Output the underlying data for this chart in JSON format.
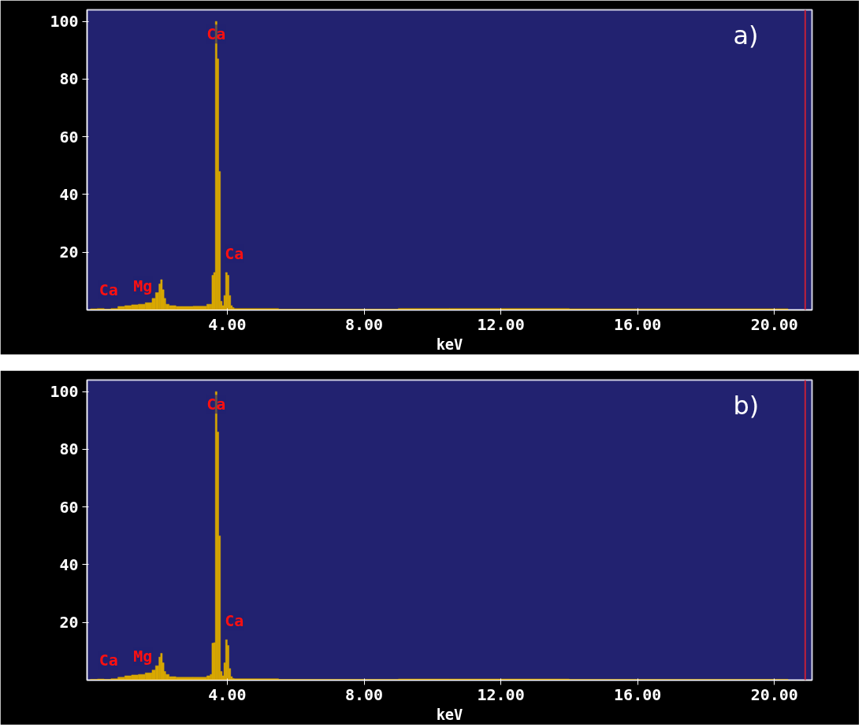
{
  "chart_data": [
    {
      "type": "histogram",
      "title": "a)",
      "xlabel": "keV",
      "bins": [
        0,
        0.2,
        0.4,
        0.6,
        0.8,
        1.0,
        1.2,
        1.4,
        1.6,
        1.8,
        1.9,
        2.0,
        2.05,
        2.1,
        2.15,
        2.2,
        2.3,
        2.5,
        3.0,
        3.4,
        3.5,
        3.55,
        3.6,
        3.65,
        3.7,
        3.75,
        3.8,
        3.85,
        3.9,
        3.95,
        4.0,
        4.05,
        4.1,
        4.15,
        4.2,
        5.5,
        9.0,
        10.5,
        14.0,
        20.4
      ],
      "values": [
        0.4,
        0.5,
        0.3,
        0.5,
        1.2,
        1.5,
        1.8,
        2,
        2.5,
        4,
        6,
        9,
        10.5,
        7,
        4,
        2,
        1.5,
        1.2,
        1.3,
        2,
        2,
        12,
        13,
        100,
        87,
        48,
        3,
        1.5,
        5,
        13,
        12,
        5,
        1.5,
        0.8,
        0.5,
        0.3,
        0.5,
        0.5,
        0.4
      ],
      "color": "#d9a800",
      "xlim": [
        -0.1,
        21.1
      ],
      "ylim": [
        0,
        104
      ],
      "xticks": [
        {
          "value": 4,
          "label": "4.00"
        },
        {
          "value": 8,
          "label": "8.00"
        },
        {
          "value": 12,
          "label": "12.00"
        },
        {
          "value": 16,
          "label": "16.00"
        },
        {
          "value": 20,
          "label": "20.00"
        }
      ],
      "yticks": [
        20,
        40,
        60,
        80,
        100
      ],
      "ref_lines": [
        {
          "axis": "x",
          "value": 20.9,
          "label": null,
          "color": "#c0203a"
        }
      ],
      "annotations": [
        {
          "text": "Ca",
          "x": 0.3,
          "y": 0.5
        },
        {
          "text": "Mg",
          "x": 1.3,
          "y": 1.8
        },
        {
          "text": "Ca",
          "x": 3.675,
          "y": 100
        },
        {
          "text": "Ca",
          "x": 3.975,
          "y": 13
        }
      ],
      "grid": false
    },
    {
      "type": "histogram",
      "title": "b)",
      "xlabel": "keV",
      "bins": [
        0,
        0.2,
        0.4,
        0.6,
        0.8,
        1.0,
        1.2,
        1.4,
        1.6,
        1.8,
        1.9,
        2.0,
        2.05,
        2.1,
        2.15,
        2.2,
        2.3,
        2.5,
        3.0,
        3.4,
        3.5,
        3.55,
        3.6,
        3.65,
        3.7,
        3.75,
        3.8,
        3.85,
        3.9,
        3.95,
        4.0,
        4.05,
        4.1,
        4.15,
        4.2,
        5.5,
        9.0,
        10.5,
        14.0,
        20.4
      ],
      "values": [
        0.3,
        0.4,
        0.3,
        0.5,
        1.0,
        1.5,
        1.8,
        2,
        2.5,
        3.5,
        5,
        8,
        9.3,
        6,
        3,
        2,
        1.2,
        1,
        1,
        1.5,
        2,
        12.8,
        13,
        100,
        86,
        50,
        3,
        1.5,
        6,
        14,
        12,
        4,
        1.2,
        0.6,
        0.5,
        0.3,
        0.4,
        0.4,
        0.3
      ],
      "color": "#d9a800",
      "xlim": [
        -0.1,
        21.1
      ],
      "ylim": [
        0,
        104
      ],
      "xticks": [
        {
          "value": 4,
          "label": "4.00"
        },
        {
          "value": 8,
          "label": "8.00"
        },
        {
          "value": 12,
          "label": "12.00"
        },
        {
          "value": 16,
          "label": "16.00"
        },
        {
          "value": 20,
          "label": "20.00"
        }
      ],
      "yticks": [
        20,
        40,
        60,
        80,
        100
      ],
      "ref_lines": [
        {
          "axis": "x",
          "value": 20.9,
          "label": null,
          "color": "#c0203a"
        }
      ],
      "annotations": [
        {
          "text": "Ca",
          "x": 0.3,
          "y": 0.4
        },
        {
          "text": "Mg",
          "x": 1.3,
          "y": 1.8
        },
        {
          "text": "Ca",
          "x": 3.675,
          "y": 100
        },
        {
          "text": "Ca",
          "x": 3.975,
          "y": 14
        }
      ],
      "grid": false
    }
  ]
}
